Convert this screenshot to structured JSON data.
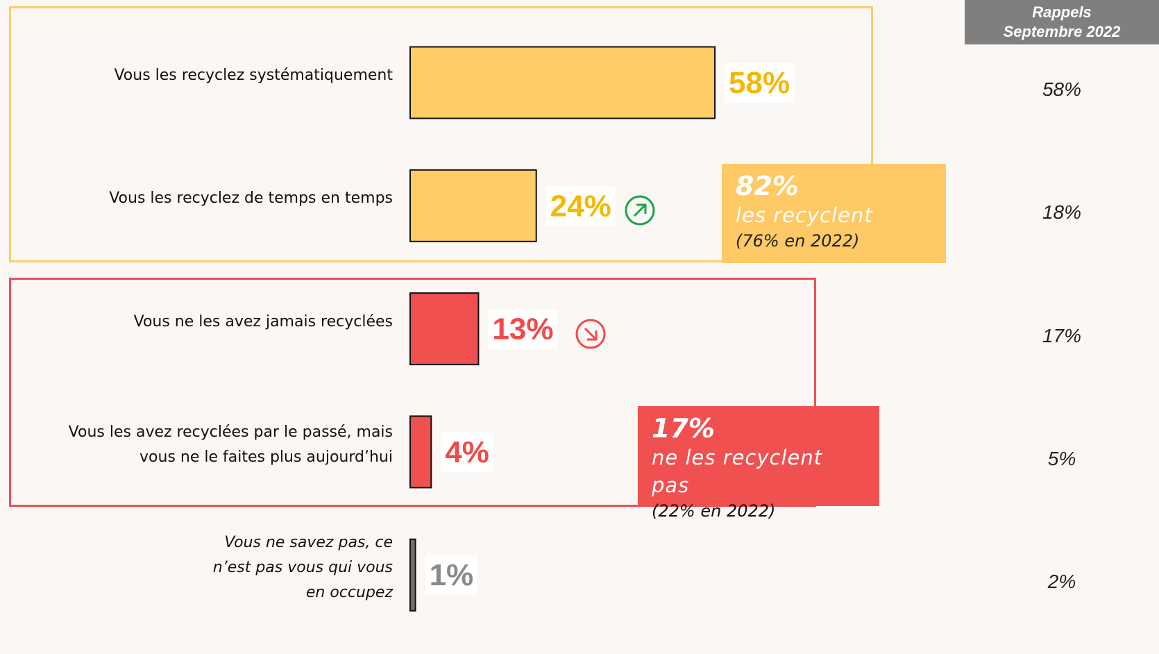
{
  "chart_data": {
    "type": "bar",
    "orientation": "horizontal",
    "categories": [
      "Vous les recyclez systématiquement",
      "Vous les recyclez de temps en temps",
      "Vous ne les avez jamais recyclées",
      "Vous les avez recyclées par le passé, mais vous ne le faites plus aujourd’hui",
      "Vous ne savez pas, ce n’est pas vous qui vous en occupez"
    ],
    "values": [
      58,
      24,
      13,
      4,
      1
    ],
    "value_labels": [
      "58%",
      "24%",
      "13%",
      "4%",
      "1%"
    ],
    "colors": [
      "#ffcc66",
      "#ffcc66",
      "#f05050",
      "#f05050",
      "#707070"
    ],
    "label_colors": [
      "#f5b800",
      "#f5b800",
      "#f04a4a",
      "#f04a4a",
      "#8a8a8a"
    ],
    "recall": {
      "header": [
        "Rappels",
        "Septembre 2022"
      ],
      "labels": [
        "58%",
        "18%",
        "17%",
        "5%",
        "2%"
      ]
    },
    "groups": [
      {
        "total": "82%",
        "text": "les recyclent",
        "previous": "(76% en 2022)"
      },
      {
        "total": "17%",
        "text": "ne les recyclent pas",
        "previous": "(22% en 2022)"
      }
    ]
  }
}
